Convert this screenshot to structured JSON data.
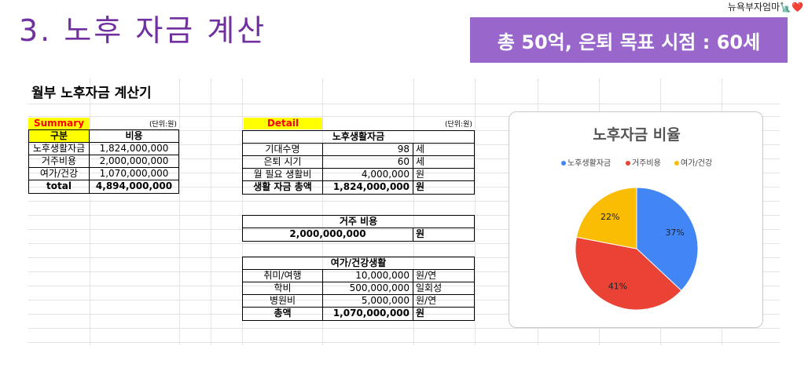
{
  "brand": "뉴욕부자엄마🗽❤️",
  "slide_title": "3. 노후 자금 계산",
  "goal": "총 50억, 은퇴 목표 시점  : 60세",
  "calc_title": "월부 노후자금 계산기",
  "summary": {
    "label": "Summary",
    "unit": "(단위:원)",
    "headers": [
      "구분",
      "비용"
    ],
    "rows": [
      {
        "name": "노후생활자금",
        "value": "1,824,000,000"
      },
      {
        "name": "거주비용",
        "value": "2,000,000,000"
      },
      {
        "name": "여가/건강",
        "value": "1,070,000,000"
      }
    ],
    "total_label": "total",
    "total_value": "4,894,000,000"
  },
  "detail": {
    "label": "Detail",
    "unit": "(단위:원)",
    "living": {
      "header": "노후생활자금",
      "rows": [
        {
          "name": "기대수명",
          "value": "98",
          "unit": "세"
        },
        {
          "name": "은퇴 시기",
          "value": "60",
          "unit": "세"
        },
        {
          "name": "월 필요 생활비",
          "value": "4,000,000",
          "unit": "원"
        }
      ],
      "total_label": "생활 자금 총액",
      "total_value": "1,824,000,000",
      "total_unit": "원"
    },
    "housing": {
      "header": "거주 비용",
      "value": "2,000,000,000",
      "unit": "원"
    },
    "leisure": {
      "header": "여가/건강생활",
      "rows": [
        {
          "name": "취미/여행",
          "value": "10,000,000",
          "unit": "원/연"
        },
        {
          "name": "학비",
          "value": "500,000,000",
          "unit": "일회성"
        },
        {
          "name": "병원비",
          "value": "5,000,000",
          "unit": "원/연"
        }
      ],
      "total_label": "총액",
      "total_value": "1,070,000,000",
      "total_unit": "원"
    }
  },
  "chart_data": {
    "type": "pie",
    "title": "노후자금 비율",
    "legend_position": "top",
    "series": [
      {
        "name": "노후생활자금",
        "value": 37,
        "label": "37%",
        "color": "#4285f4"
      },
      {
        "name": "거주비용",
        "value": 41,
        "label": "41%",
        "color": "#ea4335"
      },
      {
        "name": "여가/건강",
        "value": 22,
        "label": "22%",
        "color": "#fbbc04"
      }
    ]
  }
}
